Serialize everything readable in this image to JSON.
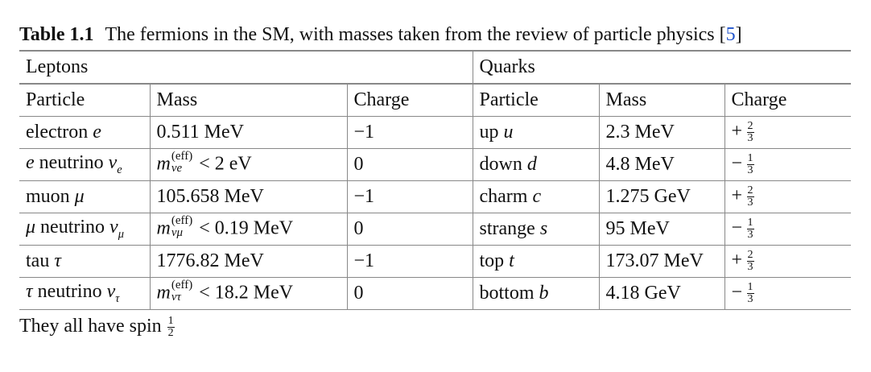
{
  "caption": {
    "label": "Table 1.1",
    "text": "The fermions in the SM, with masses taken from the review of particle physics [",
    "ref": "5",
    "close": "]"
  },
  "groups": {
    "leptons": "Leptons",
    "quarks": "Quarks"
  },
  "headers": {
    "particle": "Particle",
    "mass": "Mass",
    "charge": "Charge"
  },
  "leptons": [
    {
      "name": "electron",
      "symbol": "e",
      "mass": "0.511 MeV",
      "charge": "−1"
    },
    {
      "name_prefix": "e",
      "name": "neutrino",
      "symbol": "ν",
      "symbol_sub": "e",
      "mass_prefix": "m",
      "mass_sup": "(eff)",
      "mass_sub": "νe",
      "mass": "< 2 eV",
      "charge": "0"
    },
    {
      "name": "muon",
      "symbol": "μ",
      "mass": "105.658 MeV",
      "charge": "−1"
    },
    {
      "name_prefix": "μ",
      "name": "neutrino",
      "symbol": "ν",
      "symbol_sub": "μ",
      "mass_prefix": "m",
      "mass_sup": "(eff)",
      "mass_sub": "νμ",
      "mass": "< 0.19 MeV",
      "charge": "0"
    },
    {
      "name": "tau",
      "symbol": "τ",
      "mass": "1776.82 MeV",
      "charge": "−1"
    },
    {
      "name_prefix": "τ",
      "name": "neutrino",
      "symbol": "ν",
      "symbol_sub": "τ",
      "mass_prefix": "m",
      "mass_sup": "(eff)",
      "mass_sub": "ντ",
      "mass": "< 18.2 MeV",
      "charge": "0"
    }
  ],
  "quarks": [
    {
      "name": "up",
      "symbol": "u",
      "mass": "2.3 MeV",
      "charge_sign": "+",
      "charge_num": "2",
      "charge_den": "3"
    },
    {
      "name": "down",
      "symbol": "d",
      "mass": "4.8 MeV",
      "charge_sign": "−",
      "charge_num": "1",
      "charge_den": "3"
    },
    {
      "name": "charm",
      "symbol": "c",
      "mass": "1.275 GeV",
      "charge_sign": "+",
      "charge_num": "2",
      "charge_den": "3"
    },
    {
      "name": "strange",
      "symbol": "s",
      "mass": "95 MeV",
      "charge_sign": "−",
      "charge_num": "1",
      "charge_den": "3"
    },
    {
      "name": "top",
      "symbol": "t",
      "mass": "173.07 MeV",
      "charge_sign": "+",
      "charge_num": "2",
      "charge_den": "3"
    },
    {
      "name": "bottom",
      "symbol": "b",
      "mass": "4.18 GeV",
      "charge_sign": "−",
      "charge_num": "1",
      "charge_den": "3"
    }
  ],
  "note": {
    "text": "They all have spin",
    "num": "1",
    "den": "2"
  }
}
